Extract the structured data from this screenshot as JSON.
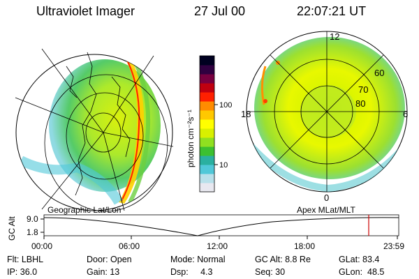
{
  "header": {
    "title": "Ultraviolet Imager",
    "date": "27 Jul 00",
    "time": "22:07:21 UT"
  },
  "colorbar": {
    "unit_label": "photon cm⁻²s⁻¹",
    "ticks": [
      "100",
      "10"
    ],
    "colors": [
      "#e8e8f0",
      "#b8e0ea",
      "#50c8d8",
      "#2ab0a0",
      "#3cc030",
      "#90e020",
      "#d8f000",
      "#ffff00",
      "#ffc800",
      "#ff8c00",
      "#ff2000",
      "#c00010",
      "#780040",
      "#300040",
      "#000020"
    ]
  },
  "left_map": {
    "label": "Geographic Lat/Lon"
  },
  "right_map": {
    "label": "Apex MLat/MLT",
    "lat_labels": [
      "80",
      "70",
      "60"
    ],
    "mlt_labels": {
      "top": "12",
      "left": "18",
      "right": "6",
      "bottom": "0"
    }
  },
  "altitude_plot": {
    "ylabel": "GC Alt",
    "y_ticks": [
      "9.0",
      "1.8"
    ],
    "x_ticks": [
      "00:00",
      "06:00",
      "12:00",
      "18:00",
      "23:59"
    ],
    "current_marker_color": "#cc0000"
  },
  "info": {
    "filter": "Flt: LBHL",
    "door": "Door: Open",
    "mode": "Mode: Normal",
    "gc_alt": "GC Alt: 8.8 Re",
    "glat": "GLat: 83.4",
    "ip": "IP: 36.0",
    "gain": "Gain: 13",
    "dsp": "Dsp:     4.3",
    "seq": "Seq: 30",
    "glon": "GLon:  48.5"
  }
}
